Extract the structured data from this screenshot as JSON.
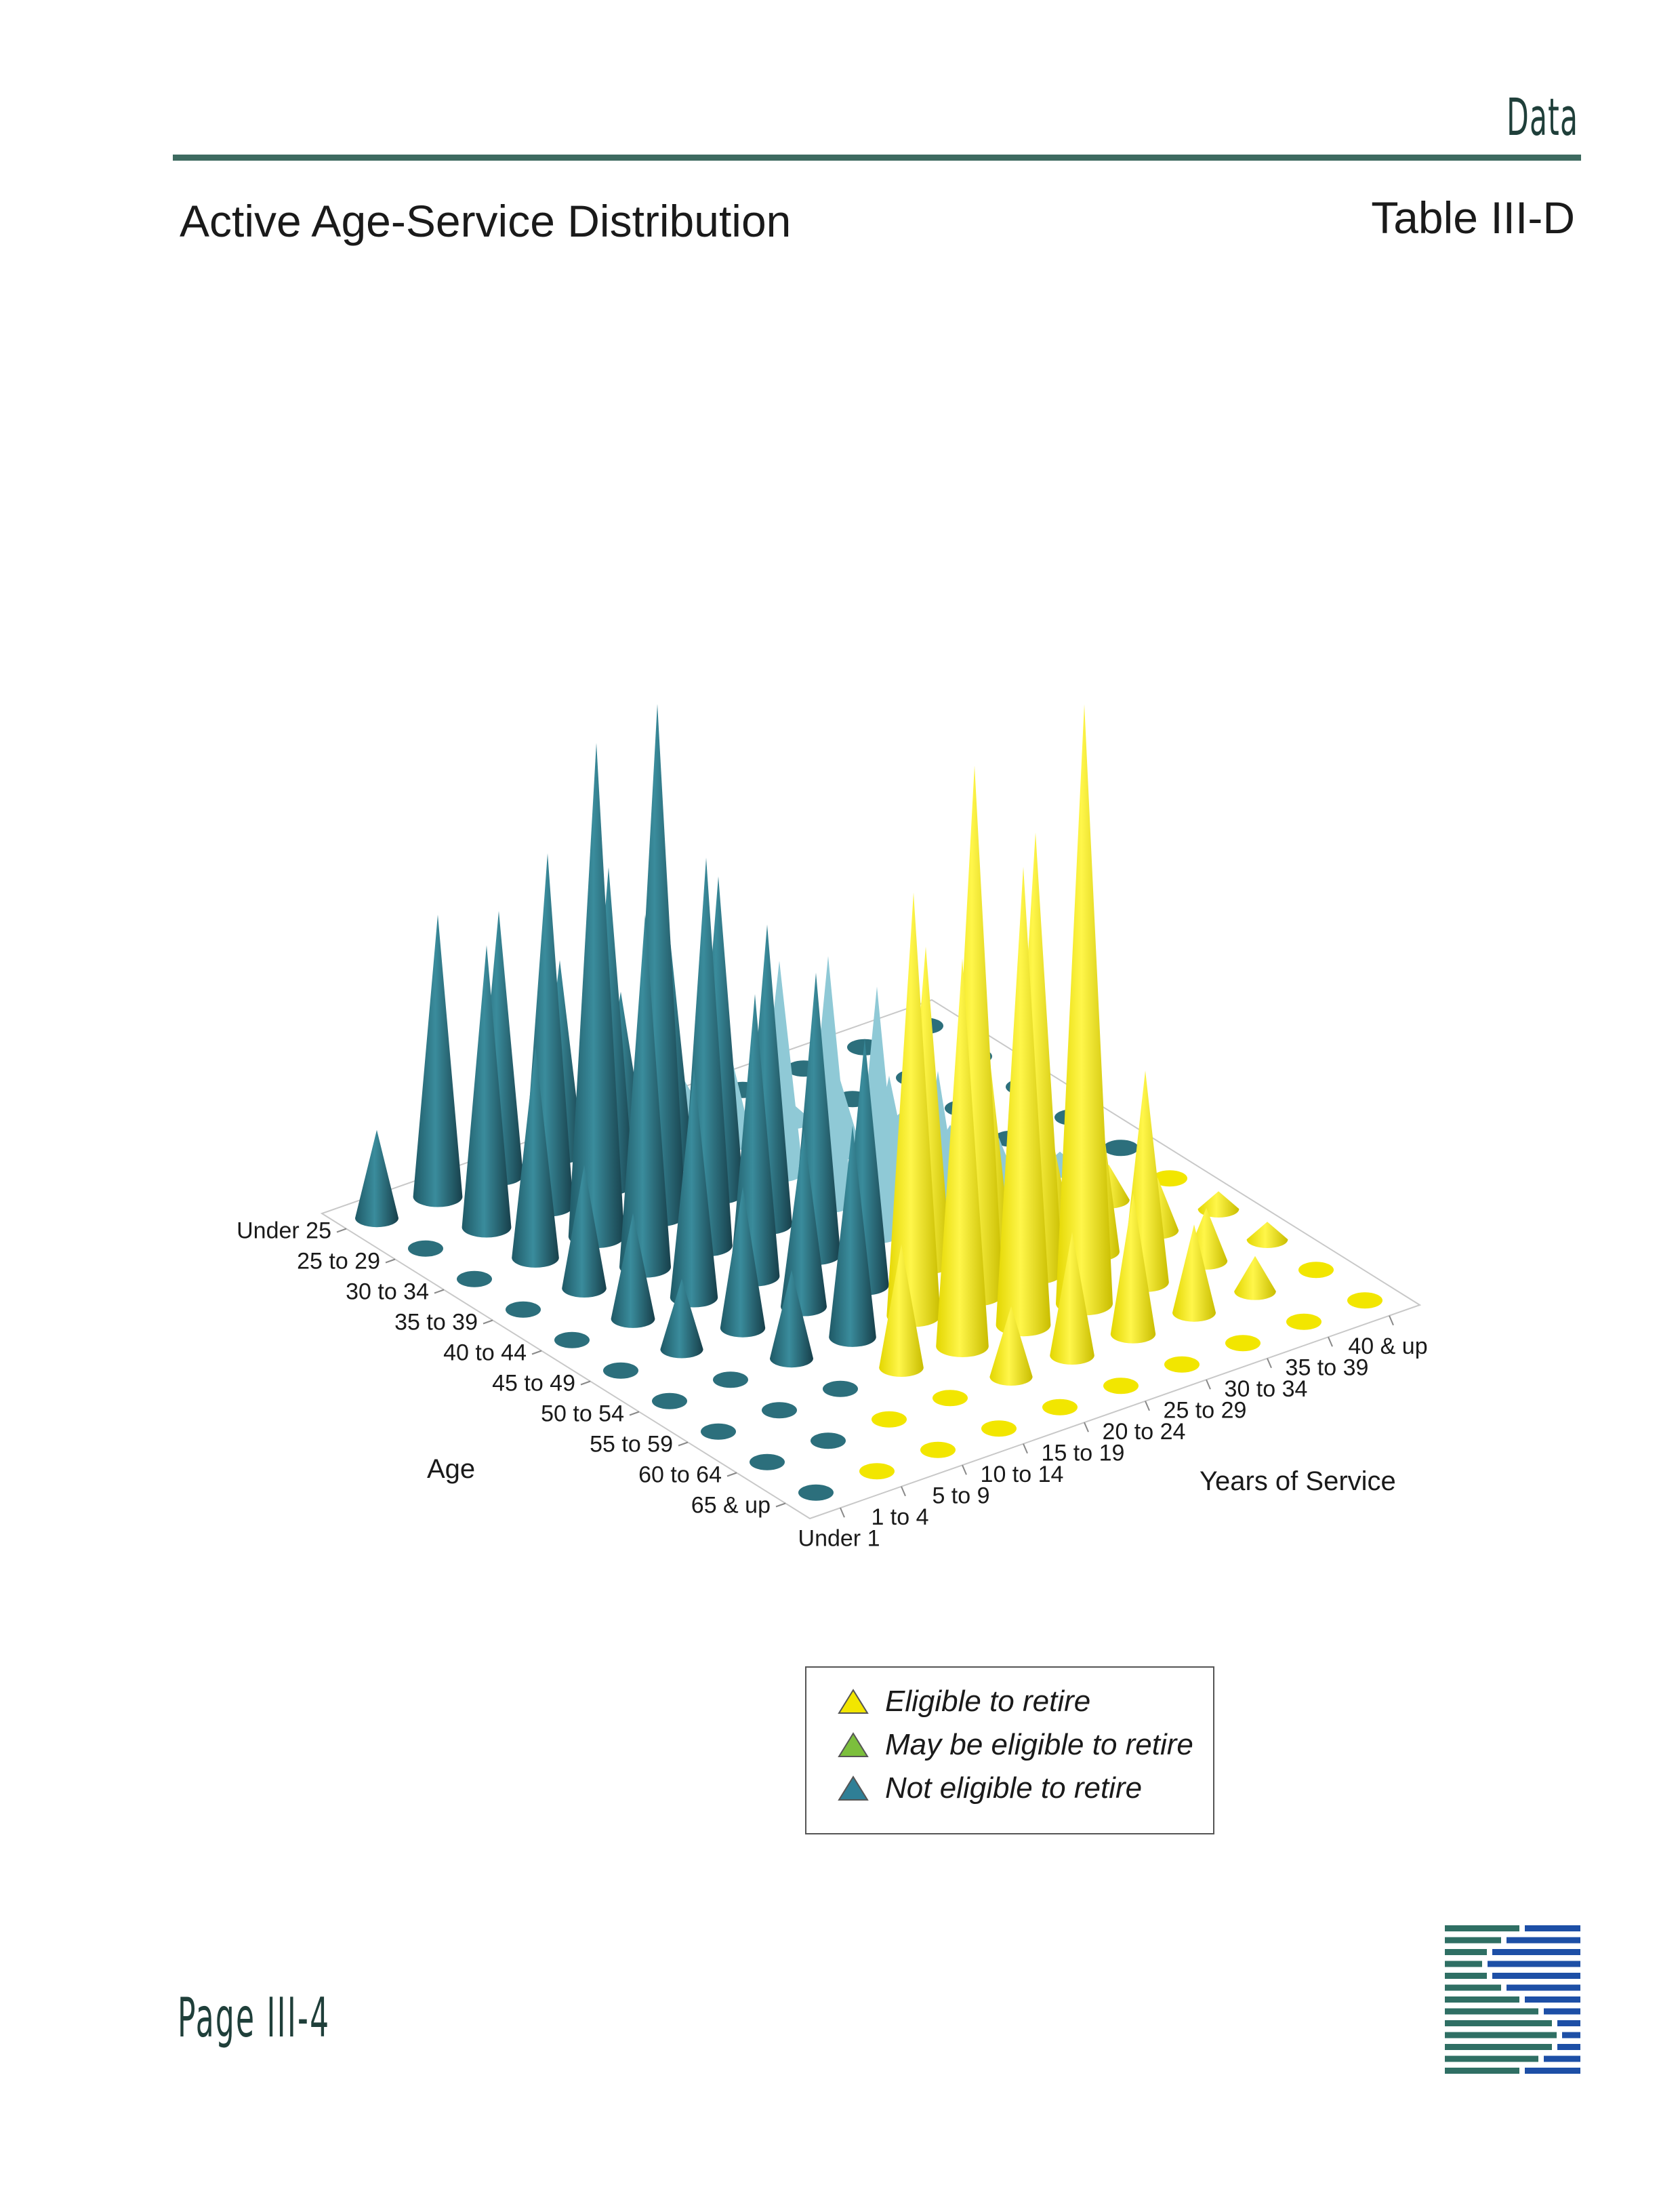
{
  "header": {
    "section": "Data",
    "title": "Active Age-Service Distribution",
    "table_id": "Table III-D"
  },
  "footer": {
    "page_number": "Page III-4"
  },
  "legend": {
    "items": [
      {
        "label": "Eligible to retire",
        "color": "#f2e600"
      },
      {
        "label": "May be eligible to retire",
        "color": "#7cbf3c"
      },
      {
        "label": "Not eligible to retire",
        "color": "#2f7f96"
      }
    ]
  },
  "colors": {
    "eligible": "#f2e600",
    "not_eligible": "#2c6f7c",
    "not_eligible_light": "#8fc9d6",
    "rule": "#3d6a60",
    "logo_green": "#2f6f64",
    "logo_blue": "#1d4fa6"
  },
  "chart_data": {
    "type": "3d-cone",
    "title": "",
    "xlabel": "Age",
    "ylabel": "Years of Service",
    "age_groups": [
      "Under 25",
      "25 to 29",
      "30 to 34",
      "35 to 39",
      "40 to 44",
      "45 to 49",
      "50 to 54",
      "55 to 59",
      "60 to 64",
      "65 & up"
    ],
    "service_groups": [
      "Under 1",
      "1 to 4",
      "5 to 9",
      "10 to 14",
      "15 to 19",
      "20 to 24",
      "25 to 29",
      "30 to 34",
      "35 to 39",
      "40 & up"
    ],
    "values": [
      [
        5,
        16,
        15,
        11,
        8,
        2,
        0,
        0,
        0,
        0
      ],
      [
        0,
        16,
        20,
        18,
        13,
        5,
        1,
        0,
        0,
        0
      ],
      [
        0,
        12,
        28,
        29,
        18,
        12,
        4,
        1,
        0,
        0
      ],
      [
        0,
        7,
        20,
        22,
        17,
        14,
        6,
        2,
        0,
        0
      ],
      [
        0,
        6,
        13,
        16,
        16,
        14,
        8,
        3,
        1,
        0
      ],
      [
        0,
        4,
        8,
        10,
        14,
        18,
        12,
        6,
        2,
        0
      ],
      [
        0,
        0,
        5,
        12,
        24,
        30,
        25,
        10,
        3,
        1
      ],
      [
        0,
        0,
        0,
        7,
        22,
        26,
        34,
        12,
        3,
        1
      ],
      [
        0,
        0,
        0,
        0,
        4,
        7,
        8,
        5,
        2,
        0
      ],
      [
        0,
        0,
        0,
        0,
        0,
        0,
        0,
        0,
        0,
        0
      ]
    ],
    "eligibility": [
      [
        "N",
        "N",
        "N",
        "N",
        "N",
        "N",
        "N",
        "N",
        "N",
        "N"
      ],
      [
        "N",
        "N",
        "N",
        "N",
        "N",
        "N",
        "N",
        "N",
        "N",
        "N"
      ],
      [
        "N",
        "N",
        "N",
        "N",
        "N",
        "N",
        "N",
        "N",
        "N",
        "N"
      ],
      [
        "N",
        "N",
        "N",
        "N",
        "N",
        "N",
        "N",
        "N",
        "N",
        "N"
      ],
      [
        "N",
        "N",
        "N",
        "N",
        "N",
        "N",
        "N",
        "N",
        "N",
        "N"
      ],
      [
        "N",
        "N",
        "N",
        "N",
        "N",
        "E",
        "E",
        "E",
        "E",
        "E"
      ],
      [
        "N",
        "N",
        "N",
        "N",
        "E",
        "E",
        "E",
        "E",
        "E",
        "E"
      ],
      [
        "N",
        "N",
        "N",
        "E",
        "E",
        "E",
        "E",
        "E",
        "E",
        "E"
      ],
      [
        "N",
        "N",
        "E",
        "E",
        "E",
        "E",
        "E",
        "E",
        "E",
        "E"
      ],
      [
        "N",
        "E",
        "E",
        "E",
        "E",
        "E",
        "E",
        "E",
        "E",
        "E"
      ]
    ],
    "legend_position": "bottom-center"
  }
}
